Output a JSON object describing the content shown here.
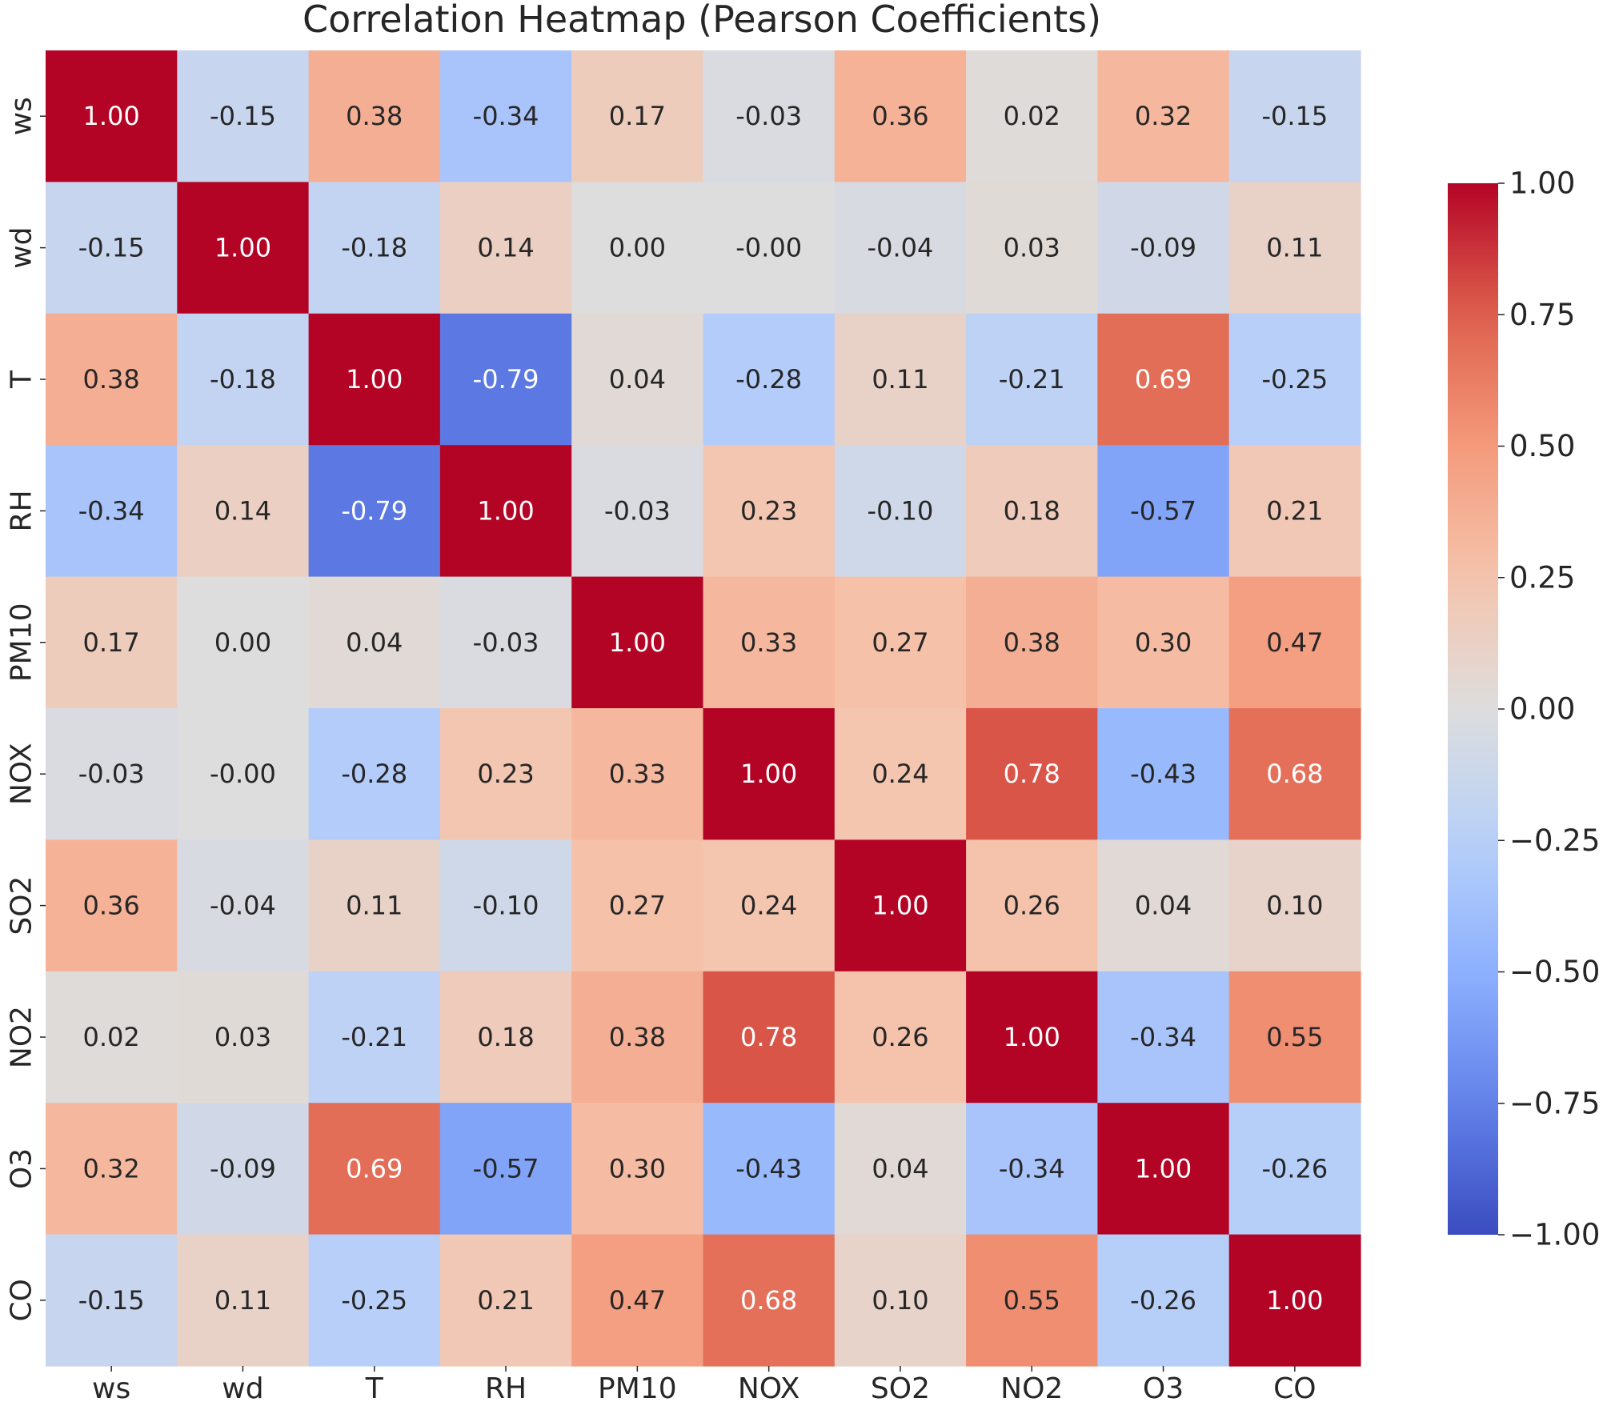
{
  "chart_data": {
    "type": "heatmap",
    "title": "Correlation Heatmap (Pearson Coefficients)",
    "xlabel": "",
    "ylabel": "",
    "x_labels": [
      "ws",
      "wd",
      "T",
      "RH",
      "PM10",
      "NOX",
      "SO2",
      "NO2",
      "O3",
      "CO"
    ],
    "y_labels": [
      "ws",
      "wd",
      "T",
      "RH",
      "PM10",
      "NOX",
      "SO2",
      "NO2",
      "O3",
      "CO"
    ],
    "values": [
      [
        1.0,
        -0.15,
        0.38,
        -0.34,
        0.17,
        -0.03,
        0.36,
        0.02,
        0.32,
        -0.15
      ],
      [
        -0.15,
        1.0,
        -0.18,
        0.14,
        0.0,
        -0.0,
        -0.04,
        0.03,
        -0.09,
        0.11
      ],
      [
        0.38,
        -0.18,
        1.0,
        -0.79,
        0.04,
        -0.28,
        0.11,
        -0.21,
        0.69,
        -0.25
      ],
      [
        -0.34,
        0.14,
        -0.79,
        1.0,
        -0.03,
        0.23,
        -0.1,
        0.18,
        -0.57,
        0.21
      ],
      [
        0.17,
        0.0,
        0.04,
        -0.03,
        1.0,
        0.33,
        0.27,
        0.38,
        0.3,
        0.47
      ],
      [
        -0.03,
        -0.0,
        -0.28,
        0.23,
        0.33,
        1.0,
        0.24,
        0.78,
        -0.43,
        0.68
      ],
      [
        0.36,
        -0.04,
        0.11,
        -0.1,
        0.27,
        0.24,
        1.0,
        0.26,
        0.04,
        0.1
      ],
      [
        0.02,
        0.03,
        -0.21,
        0.18,
        0.38,
        0.78,
        0.26,
        1.0,
        -0.34,
        0.55
      ],
      [
        0.32,
        -0.09,
        0.69,
        -0.57,
        0.3,
        -0.43,
        0.04,
        -0.34,
        1.0,
        -0.26
      ],
      [
        -0.15,
        0.11,
        -0.25,
        0.21,
        0.47,
        0.68,
        0.1,
        0.55,
        -0.26,
        1.0
      ]
    ],
    "value_format": "0.00",
    "vmin": -1.0,
    "vmax": 1.0,
    "colormap": "coolwarm",
    "colorbar": {
      "ticks": [
        1.0,
        0.75,
        0.5,
        0.25,
        0.0,
        -0.25,
        -0.5,
        -0.75,
        -1.0
      ],
      "tick_labels": [
        "1.00",
        "0.75",
        "0.50",
        "0.25",
        "0.00",
        "−0.25",
        "−0.50",
        "−0.75",
        "−1.00"
      ],
      "placement": "right"
    },
    "grid": false
  }
}
